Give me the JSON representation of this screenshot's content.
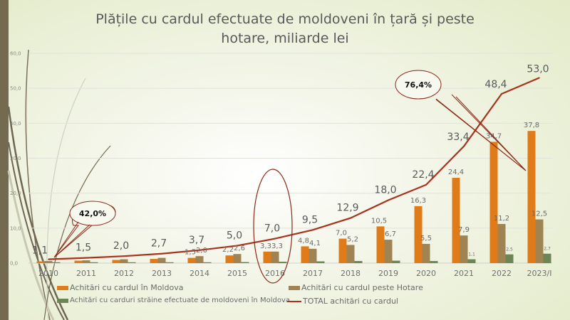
{
  "chart_data": {
    "type": "bar",
    "title": "Plățile cu cardul efectuate de moldoveni în țară și peste hotare, miliarde lei",
    "title_lines": [
      "Plățile cu cardul efectuate de moldoveni în țară și peste",
      "hotare, miliarde lei"
    ],
    "xlabel": "",
    "ylabel": "",
    "ylim": [
      0,
      60
    ],
    "yticks": [
      "0,0",
      "10,0",
      "20,0",
      "30,0",
      "40,0",
      "50,0",
      "60,0"
    ],
    "grid": true,
    "categories": [
      "2010",
      "2011",
      "2012",
      "2013",
      "2014",
      "2015",
      "2016",
      "2017",
      "2018",
      "2019",
      "2020",
      "2021",
      "2022",
      "2023/I"
    ],
    "series": [
      {
        "name": "Achitări cu cardul în Moldova",
        "type": "bar",
        "color": "#e07b1a",
        "values": [
          0.5,
          0.7,
          0.9,
          1.2,
          1.5,
          2.2,
          3.3,
          4.8,
          7.0,
          10.5,
          16.3,
          24.4,
          34.7,
          37.8
        ],
        "labels": [
          null,
          null,
          null,
          null,
          "1,5",
          "2,2",
          "3,3",
          "4,8",
          "7,0",
          "10,5",
          "16,3",
          "24,4",
          "34,7",
          "37,8"
        ]
      },
      {
        "name": "Achitări cu cardul peste Hotare",
        "type": "bar",
        "color": "#a08352",
        "values": [
          0.6,
          0.8,
          1.1,
          1.5,
          2.0,
          2.6,
          3.3,
          4.1,
          5.2,
          6.7,
          5.5,
          7.9,
          11.2,
          12.5
        ],
        "labels": [
          null,
          null,
          null,
          null,
          "2,0",
          "2,6",
          "3,3",
          "4,1",
          "5,2",
          "6,7",
          "5,5",
          "7,9",
          "11,2",
          "12,5"
        ]
      },
      {
        "name": "Achitări cu carduri străine efectuate de moldoveni în Moldova",
        "type": "bar",
        "color": "#6b8654",
        "values": [
          0.0,
          0.0,
          0.1,
          0.1,
          0.2,
          0.3,
          0.4,
          0.5,
          0.6,
          0.7,
          0.6,
          1.1,
          2.5,
          2.7
        ],
        "labels": [
          null,
          null,
          null,
          null,
          null,
          null,
          null,
          null,
          null,
          null,
          null,
          "1,1",
          "2,5",
          "2,7"
        ]
      },
      {
        "name": "TOTAL achitări cu cardul",
        "type": "line",
        "color": "#a8321c",
        "values": [
          1.1,
          1.5,
          2.0,
          2.7,
          3.7,
          5.0,
          7.0,
          9.5,
          12.9,
          18.0,
          22.4,
          33.4,
          48.4,
          53.0
        ],
        "labels": [
          "1,1",
          "1,5",
          "2,0",
          "2,7",
          "3,7",
          "5,0",
          "7,0",
          "9,5",
          "12,9",
          "18,0",
          "22,4",
          "33,4",
          "48,4",
          "53,0"
        ]
      }
    ],
    "annotations": [
      {
        "text": "42,0%",
        "type": "callout",
        "points_to": "2010"
      },
      {
        "text": "76,4%",
        "type": "callout",
        "points_to": "2023/I"
      },
      {
        "type": "ellipse",
        "highlights": "2016"
      }
    ],
    "legend": "bottom"
  }
}
